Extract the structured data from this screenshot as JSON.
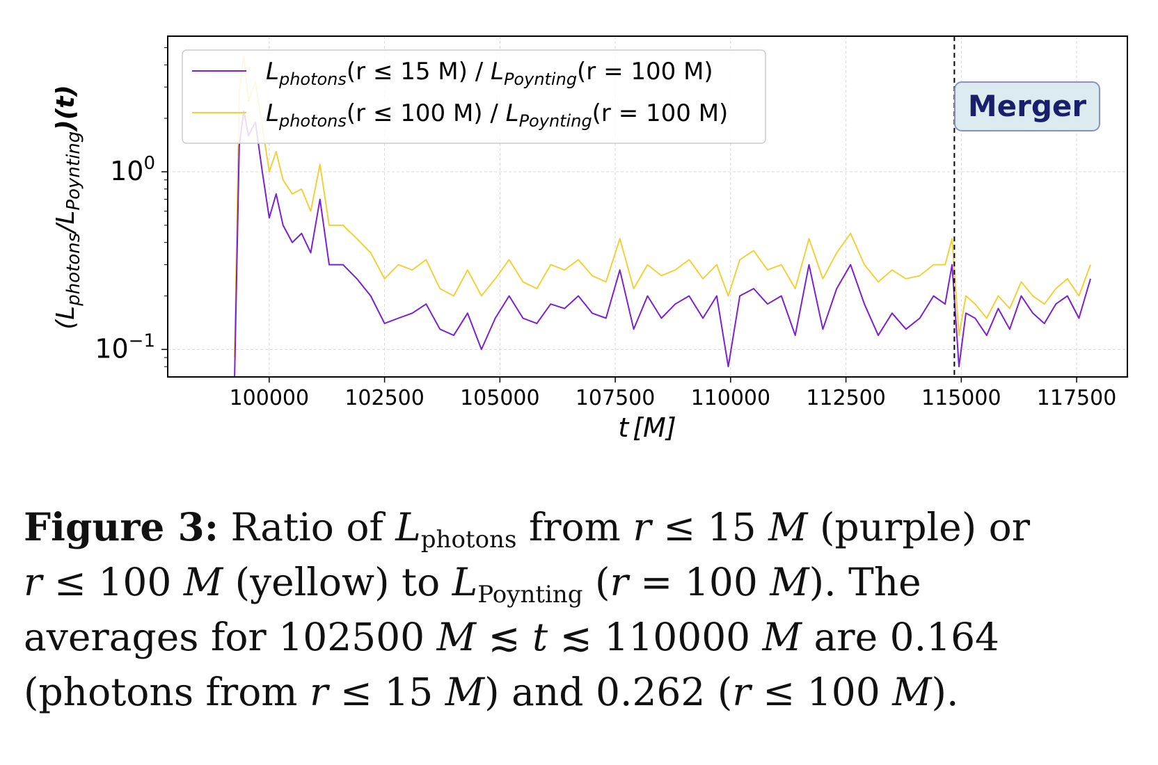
{
  "chart_data": {
    "type": "line",
    "y_scale": "log",
    "xlim": [
      97800,
      118600
    ],
    "ylim": [
      0.07,
      5.8
    ],
    "xticks": [
      100000,
      102500,
      105000,
      107500,
      110000,
      112500,
      115000,
      117500
    ],
    "xtick_labels": [
      "100000",
      "102500",
      "105000",
      "107500",
      "110000",
      "112500",
      "115000",
      "117500"
    ],
    "ytick_labels": [
      {
        "value": 1,
        "base": "10",
        "exp": "0"
      },
      {
        "value": 0.1,
        "base": "10",
        "exp": "−1"
      }
    ],
    "xlabel": {
      "main": "t",
      "unit": "[M]"
    },
    "ylabel": {
      "open": "(L",
      "sub1": "photons",
      "mid": "/L",
      "sub2": "Poynting",
      "close": ")(t)"
    },
    "grid": true,
    "legend_position": "upper-left",
    "merger_line": {
      "x": 114850,
      "label": "Merger",
      "style": "dashed",
      "color": "#000000"
    },
    "series": [
      {
        "name": "L_photons(r ≤ 15 M) / L_Poynting(r = 100 M)",
        "legend": {
          "L": "L",
          "sub1": "photons",
          "arg1": "(r ≤ 15 M)",
          "sep": " / ",
          "L2": "L",
          "sub2": "Poynting",
          "arg2": "(r = 100 M)"
        },
        "color": "#7b1fd4",
        "x": [
          99250,
          99350,
          99450,
          99550,
          99700,
          99850,
          100000,
          100150,
          100300,
          100500,
          100700,
          100900,
          101100,
          101300,
          101600,
          101900,
          102200,
          102500,
          102800,
          103100,
          103400,
          103700,
          104000,
          104300,
          104600,
          104900,
          105200,
          105500,
          105800,
          106100,
          106400,
          106700,
          107000,
          107300,
          107600,
          107900,
          108200,
          108500,
          108800,
          109100,
          109400,
          109700,
          109950,
          110200,
          110500,
          110800,
          111100,
          111400,
          111700,
          112000,
          112300,
          112600,
          112900,
          113200,
          113500,
          113800,
          114100,
          114400,
          114650,
          114800,
          114950,
          115100,
          115300,
          115550,
          115800,
          116050,
          116300,
          116550,
          116800,
          117050,
          117300,
          117550,
          117800
        ],
        "y": [
          0.07,
          1.4,
          2.2,
          1.6,
          1.9,
          1.0,
          0.55,
          0.75,
          0.5,
          0.4,
          0.45,
          0.35,
          0.7,
          0.3,
          0.3,
          0.25,
          0.2,
          0.14,
          0.15,
          0.16,
          0.18,
          0.13,
          0.12,
          0.16,
          0.1,
          0.15,
          0.2,
          0.15,
          0.14,
          0.18,
          0.17,
          0.2,
          0.16,
          0.15,
          0.28,
          0.13,
          0.2,
          0.15,
          0.18,
          0.2,
          0.15,
          0.2,
          0.08,
          0.2,
          0.22,
          0.18,
          0.2,
          0.12,
          0.3,
          0.13,
          0.22,
          0.3,
          0.18,
          0.12,
          0.16,
          0.13,
          0.15,
          0.2,
          0.18,
          0.3,
          0.08,
          0.16,
          0.15,
          0.12,
          0.17,
          0.13,
          0.2,
          0.16,
          0.14,
          0.18,
          0.2,
          0.15,
          0.25
        ]
      },
      {
        "name": "L_photons(r ≤ 100 M) / L_Poynting(r = 100 M)",
        "legend": {
          "L": "L",
          "sub1": "photons",
          "arg1": "(r ≤ 100 M)",
          "sep": " / ",
          "L2": "L",
          "sub2": "Poynting",
          "arg2": "(r = 100 M)"
        },
        "color": "#f0d138",
        "x": [
          99250,
          99350,
          99450,
          99550,
          99700,
          99850,
          100000,
          100150,
          100300,
          100500,
          100700,
          100900,
          101100,
          101300,
          101600,
          101900,
          102200,
          102500,
          102800,
          103100,
          103400,
          103700,
          104000,
          104300,
          104600,
          104900,
          105200,
          105500,
          105800,
          106100,
          106400,
          106700,
          107000,
          107300,
          107600,
          107900,
          108200,
          108500,
          108800,
          109100,
          109400,
          109700,
          109950,
          110200,
          110500,
          110800,
          111100,
          111400,
          111700,
          112000,
          112300,
          112600,
          112900,
          113200,
          113500,
          113800,
          114100,
          114400,
          114650,
          114800,
          114950,
          115100,
          115300,
          115550,
          115800,
          116050,
          116300,
          116550,
          116800,
          117050,
          117300,
          117550,
          117800
        ],
        "y": [
          0.09,
          2.8,
          4.5,
          2.5,
          3.2,
          1.8,
          1.0,
          1.3,
          0.9,
          0.75,
          0.8,
          0.6,
          1.1,
          0.5,
          0.5,
          0.42,
          0.35,
          0.25,
          0.3,
          0.28,
          0.32,
          0.22,
          0.2,
          0.28,
          0.2,
          0.25,
          0.32,
          0.24,
          0.22,
          0.3,
          0.28,
          0.32,
          0.26,
          0.24,
          0.42,
          0.22,
          0.3,
          0.26,
          0.28,
          0.32,
          0.25,
          0.3,
          0.2,
          0.32,
          0.36,
          0.28,
          0.3,
          0.22,
          0.42,
          0.25,
          0.35,
          0.45,
          0.3,
          0.24,
          0.28,
          0.25,
          0.26,
          0.3,
          0.3,
          0.42,
          0.12,
          0.2,
          0.18,
          0.15,
          0.2,
          0.17,
          0.24,
          0.2,
          0.18,
          0.22,
          0.25,
          0.2,
          0.3
        ]
      }
    ]
  },
  "caption": {
    "label": "Figure 3:",
    "l1_a": " Ratio of ",
    "L": "L",
    "sub_photons": "photons",
    "l1_b": " from ",
    "r": "r",
    "le": " ≤ ",
    "n15": "15",
    "M": "M",
    "l1_c": " (purple) or",
    "n100": "100",
    "l2_a": " (yellow) to ",
    "sub_poynting": "Poynting",
    "eq_open": " (",
    "eq": " = ",
    "l2_b": ").  The",
    "l3_a": "averages for ",
    "n102500": "102500",
    "lesim": " ≲ ",
    "t": "t",
    "n110000": "110000",
    "l3_b": " are 0.164",
    "l4_a": "(photons from ",
    "l4_b": ") and 0.262 (",
    "l4_c": ")."
  }
}
